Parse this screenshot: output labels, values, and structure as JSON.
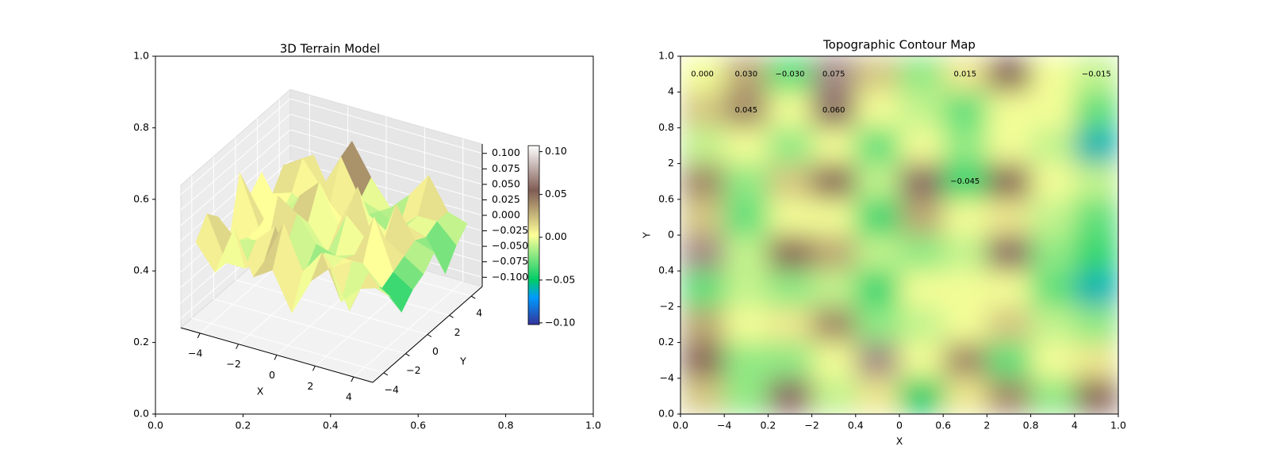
{
  "chart_data": [
    {
      "type": "surface3d",
      "title": "3D Terrain Model",
      "xlim": [
        0,
        1
      ],
      "xticks": [
        {
          "value": 0,
          "label": "0.0"
        },
        0.2,
        0.4,
        0.6,
        0.8,
        {
          "value": 1,
          "label": "1.0"
        }
      ],
      "ylim": [
        0,
        1
      ],
      "yticks": [
        {
          "value": 0,
          "label": "0.0"
        },
        0.2,
        0.4,
        0.6,
        0.8,
        {
          "value": 1,
          "label": "1.0"
        }
      ],
      "x3dlim": [
        -5,
        5
      ],
      "x3dticks": [
        {
          "value": -4,
          "label": "−4"
        },
        {
          "value": -2,
          "label": "−2"
        },
        0,
        2,
        4
      ],
      "y3dlim": [
        -5,
        5
      ],
      "y3dticks": [
        {
          "value": -4,
          "label": "−4"
        },
        {
          "value": -2,
          "label": "−2"
        },
        0,
        2,
        4
      ],
      "zlim": [
        -0.115,
        0.115
      ],
      "zticks": [
        {
          "value": -0.1,
          "label": "−0.100"
        },
        {
          "value": -0.075,
          "label": "−0.075"
        },
        {
          "value": -0.05,
          "label": "−0.050"
        },
        {
          "value": -0.025,
          "label": "−0.025"
        },
        {
          "value": 0,
          "label": "0.000"
        },
        {
          "value": 0.025,
          "label": "0.025"
        },
        {
          "value": 0.05,
          "label": "0.050"
        },
        {
          "value": 0.075,
          "label": "0.075"
        },
        {
          "value": 0.1,
          "label": "0.100"
        }
      ],
      "xlabel": "X",
      "ylabel": "Y",
      "colormap": "terrain",
      "colorbar": {
        "lim": [
          -0.102,
          0.107
        ],
        "ticks": [
          {
            "value": -0.1,
            "label": "−0.10"
          },
          {
            "value": -0.05,
            "label": "−0.05"
          },
          {
            "value": 0,
            "label": "0.00"
          },
          {
            "value": 0.05,
            "label": "0.05"
          },
          {
            "value": 0.1,
            "label": "0.10"
          }
        ]
      },
      "x": [
        -4.5,
        -3.5,
        -2.5,
        -1.5,
        -0.5,
        0.5,
        1.5,
        2.5,
        3.5,
        4.5
      ],
      "y": [
        4.5,
        3.5,
        2.5,
        1.5,
        0.5,
        -0.5,
        -1.5,
        -2.5,
        -3.5,
        -4.5
      ],
      "z": [
        [
          0.0,
          0.03,
          -0.03,
          0.07,
          0.02,
          -0.02,
          0.01,
          0.05,
          0.0,
          -0.01
        ],
        [
          0.02,
          0.04,
          0.0,
          0.06,
          0.0,
          -0.01,
          -0.03,
          0.0,
          0.0,
          -0.03
        ],
        [
          -0.01,
          0.0,
          -0.02,
          0.0,
          -0.03,
          0.0,
          -0.02,
          0.0,
          -0.01,
          -0.06
        ],
        [
          0.04,
          -0.02,
          0.02,
          0.05,
          -0.01,
          0.06,
          -0.04,
          0.05,
          0.0,
          -0.01
        ],
        [
          0.02,
          -0.03,
          0.0,
          0.0,
          -0.04,
          0.03,
          0.0,
          0.01,
          -0.01,
          -0.03
        ],
        [
          0.07,
          -0.01,
          0.05,
          0.03,
          -0.01,
          -0.02,
          -0.01,
          0.06,
          -0.02,
          -0.04
        ],
        [
          -0.03,
          -0.01,
          -0.02,
          -0.01,
          -0.04,
          0.0,
          0.0,
          0.0,
          -0.03,
          -0.06
        ],
        [
          0.03,
          0.0,
          0.01,
          0.04,
          -0.02,
          -0.01,
          0.0,
          0.02,
          -0.01,
          -0.02
        ],
        [
          0.05,
          -0.02,
          -0.02,
          0.0,
          0.07,
          0.0,
          0.04,
          -0.03,
          0.0,
          0.01
        ],
        [
          0.02,
          -0.02,
          0.06,
          -0.01,
          0.01,
          -0.05,
          0.01,
          0.04,
          -0.02,
          0.05
        ]
      ]
    },
    {
      "type": "contour",
      "title": "Topographic Contour Map",
      "xlim": [
        0,
        1
      ],
      "xticks": [
        {
          "value": 0,
          "label": "0.0"
        },
        0.2,
        0.4,
        0.6,
        0.8,
        {
          "value": 1,
          "label": "1.0"
        }
      ],
      "ylim": [
        0,
        1
      ],
      "yticks": [
        {
          "value": 0,
          "label": "0.0"
        },
        0.2,
        0.4,
        0.6,
        0.8,
        {
          "value": 1,
          "label": "1.0"
        }
      ],
      "inner_xlim": [
        -5,
        5
      ],
      "inner_xticks": [
        {
          "value": -4,
          "label": "−4"
        },
        {
          "value": -2,
          "label": "−2"
        },
        0,
        2,
        4
      ],
      "inner_ylim": [
        -5,
        5
      ],
      "inner_yticks": [
        {
          "value": -4,
          "label": "−4"
        },
        {
          "value": -2,
          "label": "−2"
        },
        0,
        2,
        4
      ],
      "xlabel": "X",
      "ylabel": "Y",
      "colormap": "terrain",
      "clim": [
        -0.102,
        0.107
      ],
      "levels": [
        {
          "value": -0.045,
          "label": "−0.045"
        },
        {
          "value": -0.03,
          "label": "−0.030"
        },
        {
          "value": -0.015,
          "label": "−0.015"
        },
        {
          "value": 0,
          "label": "0.000"
        },
        {
          "value": 0.015,
          "label": "0.015"
        },
        {
          "value": 0.03,
          "label": "0.030"
        },
        {
          "value": 0.045,
          "label": "0.045"
        },
        {
          "value": 0.06,
          "label": "0.060"
        },
        {
          "value": 0.075,
          "label": "0.075"
        }
      ],
      "x": [
        -4.5,
        -3.5,
        -2.5,
        -1.5,
        -0.5,
        0.5,
        1.5,
        2.5,
        3.5,
        4.5
      ],
      "y": [
        4.5,
        3.5,
        2.5,
        1.5,
        0.5,
        -0.5,
        -1.5,
        -2.5,
        -3.5,
        -4.5
      ],
      "z": [
        [
          0.0,
          0.03,
          -0.03,
          0.07,
          0.02,
          -0.02,
          0.01,
          0.05,
          0.0,
          -0.01
        ],
        [
          0.02,
          0.04,
          0.0,
          0.06,
          0.0,
          -0.01,
          -0.03,
          0.0,
          0.0,
          -0.03
        ],
        [
          -0.01,
          0.0,
          -0.02,
          0.0,
          -0.03,
          0.0,
          -0.02,
          0.0,
          -0.01,
          -0.06
        ],
        [
          0.04,
          -0.02,
          0.02,
          0.05,
          -0.01,
          0.06,
          -0.04,
          0.05,
          0.0,
          -0.01
        ],
        [
          0.02,
          -0.03,
          0.0,
          0.0,
          -0.04,
          0.03,
          0.0,
          0.01,
          -0.01,
          -0.03
        ],
        [
          0.07,
          -0.01,
          0.05,
          0.03,
          -0.01,
          -0.02,
          -0.01,
          0.06,
          -0.02,
          -0.04
        ],
        [
          -0.03,
          -0.01,
          -0.02,
          -0.01,
          -0.04,
          0.0,
          0.0,
          0.0,
          -0.03,
          -0.06
        ],
        [
          0.03,
          0.0,
          0.01,
          0.04,
          -0.02,
          -0.01,
          0.0,
          0.02,
          -0.01,
          -0.02
        ],
        [
          0.05,
          -0.02,
          -0.02,
          0.0,
          0.07,
          0.0,
          0.04,
          -0.03,
          0.0,
          0.01
        ],
        [
          0.02,
          -0.02,
          0.06,
          -0.01,
          0.01,
          -0.05,
          0.01,
          0.04,
          -0.02,
          0.05
        ]
      ]
    }
  ]
}
